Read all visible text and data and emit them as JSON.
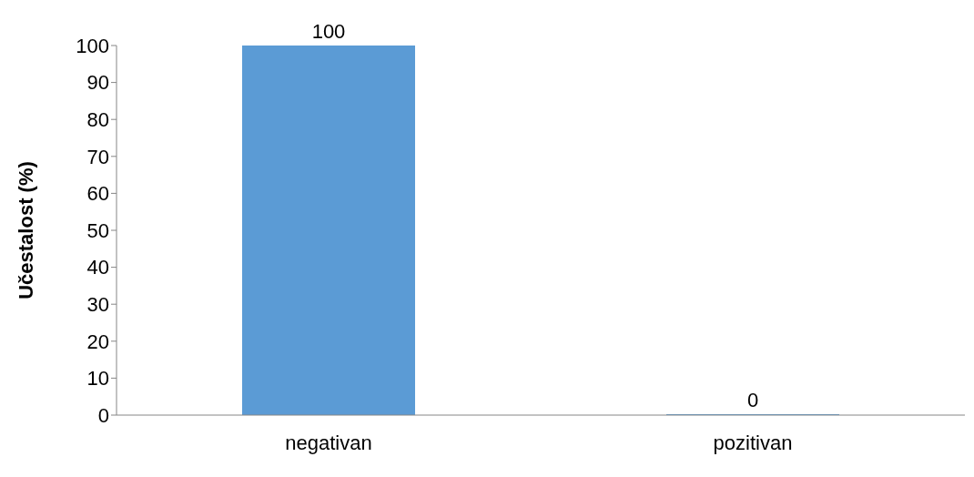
{
  "chart_data": {
    "type": "bar",
    "ylabel": "Učestalost (%)",
    "categories": [
      "negativan",
      "pozitivan"
    ],
    "values": [
      100,
      0
    ],
    "color": "#5b9bd5",
    "ylim": [
      0,
      100
    ],
    "yticks": [
      0,
      10,
      20,
      30,
      40,
      50,
      60,
      70,
      80,
      90,
      100
    ],
    "grid": false,
    "legend": false,
    "data_labels": true
  }
}
